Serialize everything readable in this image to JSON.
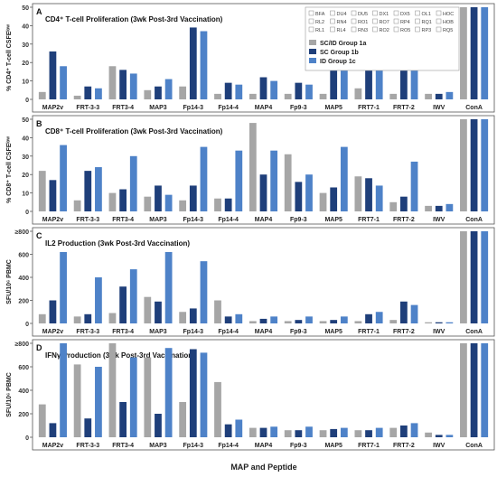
{
  "figure": {
    "xlabel": "MAP and Peptide",
    "legend": {
      "subjects": [
        "BFA",
        "DU4",
        "DU5",
        "DX1",
        "DX5",
        "OL1",
        "HOC",
        "RL2",
        "RN4",
        "RO1",
        "RO7",
        "RP4",
        "RQ1",
        "HOB",
        "RL1",
        "RL4",
        "RN3",
        "RO2",
        "RO5",
        "RP3",
        "RQ5"
      ],
      "groups": [
        {
          "name": "SC/ID  Group 1a",
          "color": "#a6a6a6"
        },
        {
          "name": "SC  Group 1b",
          "color": "#1f3f7a"
        },
        {
          "name": "ID  Group 1c",
          "color": "#4e82c8"
        }
      ]
    }
  },
  "chart_data": [
    {
      "type": "bar",
      "panel": "A",
      "title": "CD4⁺ T-cell Proliferation (3wk Post-3rd Vaccination)",
      "ylabel": "% CD4⁺ T-cell CSFEˡᵒʷ",
      "ylim": [
        0,
        50
      ],
      "yticks": [
        "0",
        "10",
        "20",
        "30",
        "40",
        "50"
      ],
      "categories": [
        "MAP2v",
        "FRT-3-3",
        "FRT3-4",
        "MAP3",
        "Fp14-3",
        "Fp14-4",
        "MAP4",
        "Fp9-3",
        "MAP5",
        "FRT7-1",
        "FRT7-2",
        "IWV",
        "ConA"
      ],
      "series": [
        {
          "name": "SC/ID  Group 1a",
          "values": [
            4,
            2,
            18,
            5,
            7,
            3,
            3,
            3,
            3,
            6,
            3,
            3,
            50
          ]
        },
        {
          "name": "SC  Group 1b",
          "values": [
            26,
            7,
            16,
            7,
            39,
            9,
            12,
            9,
            18,
            37,
            18,
            3,
            50
          ]
        },
        {
          "name": "ID  Group 1c",
          "values": [
            18,
            6,
            14,
            11,
            37,
            8,
            10,
            8,
            19,
            21,
            25,
            4,
            50
          ]
        }
      ]
    },
    {
      "type": "bar",
      "panel": "B",
      "title": "CD8⁺ T-cell Proliferation (3wk Post-3rd Vaccination)",
      "ylabel": "% CD8⁺ T-cell CSFEˡᵒʷ",
      "ylim": [
        0,
        50
      ],
      "yticks": [
        "0",
        "10",
        "20",
        "30",
        "40",
        "50"
      ],
      "categories": [
        "MAP2v",
        "FRT-3-3",
        "FRT3-4",
        "MAP3",
        "Fp14-3",
        "Fp14-4",
        "MAP4",
        "Fp9-3",
        "MAP5",
        "FRT7-1",
        "FRT7-2",
        "IWV",
        "ConA"
      ],
      "series": [
        {
          "name": "SC/ID  Group 1a",
          "values": [
            22,
            6,
            10,
            8,
            6,
            7,
            48,
            31,
            10,
            19,
            5,
            3,
            50
          ]
        },
        {
          "name": "SC  Group 1b",
          "values": [
            17,
            22,
            12,
            14,
            14,
            7,
            20,
            16,
            13,
            18,
            8,
            3,
            50
          ]
        },
        {
          "name": "ID  Group 1c",
          "values": [
            36,
            24,
            30,
            9,
            35,
            33,
            33,
            20,
            35,
            14,
            27,
            4,
            50
          ]
        }
      ]
    },
    {
      "type": "bar",
      "panel": "C",
      "title": "IL2 Production (3wk Post-3rd Vaccination)",
      "ylabel": "SFU/10⁶ PBMC",
      "ylim": [
        0,
        800
      ],
      "yticks": [
        "0",
        "200",
        "400",
        "600",
        "≥800"
      ],
      "categories": [
        "MAP2v",
        "FRT-3-3",
        "FRT3-4",
        "MAP3",
        "Fp14-3",
        "Fp14-4",
        "MAP4",
        "Fp9-3",
        "MAP5",
        "FRT7-1",
        "FRT7-2",
        "IWV",
        "ConA"
      ],
      "series": [
        {
          "name": "SC/ID  Group 1a",
          "values": [
            80,
            60,
            90,
            230,
            100,
            200,
            20,
            20,
            20,
            20,
            30,
            10,
            800
          ]
        },
        {
          "name": "SC  Group 1b",
          "values": [
            200,
            80,
            320,
            190,
            130,
            60,
            40,
            30,
            30,
            80,
            190,
            10,
            800
          ]
        },
        {
          "name": "ID  Group 1c",
          "values": [
            620,
            400,
            470,
            620,
            540,
            80,
            60,
            60,
            60,
            100,
            160,
            10,
            800
          ]
        }
      ]
    },
    {
      "type": "bar",
      "panel": "D",
      "title": "IFNγ Production (3wk Post-3rd Vaccination)",
      "ylabel": "SFU/10⁶ PBMC",
      "ylim": [
        0,
        800
      ],
      "yticks": [
        "0",
        "200",
        "400",
        "600",
        "≥800"
      ],
      "categories": [
        "MAP2v",
        "FRT-3-3",
        "FRT3-4",
        "MAP3",
        "Fp14-3",
        "Fp14-4",
        "MAP4",
        "Fp9-3",
        "MAP5",
        "FRT7-1",
        "FRT7-2",
        "IWV",
        "ConA"
      ],
      "series": [
        {
          "name": "SC/ID  Group 1a",
          "values": [
            280,
            620,
            800,
            680,
            300,
            470,
            80,
            60,
            60,
            60,
            80,
            40,
            800
          ]
        },
        {
          "name": "SC  Group 1b",
          "values": [
            120,
            160,
            300,
            200,
            750,
            110,
            80,
            60,
            70,
            60,
            100,
            20,
            800
          ]
        },
        {
          "name": "ID  Group 1c",
          "values": [
            800,
            600,
            680,
            760,
            720,
            150,
            90,
            90,
            80,
            80,
            120,
            20,
            800
          ]
        }
      ]
    }
  ]
}
